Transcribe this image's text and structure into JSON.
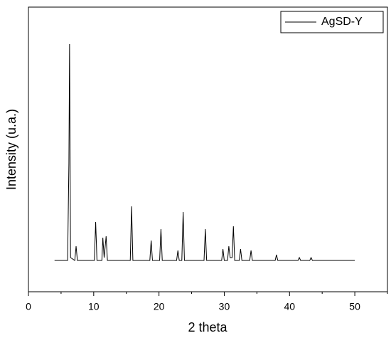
{
  "chart_data": {
    "type": "line",
    "x_label": "2 theta",
    "y_label": "Intensity (u.a.)",
    "xlim": [
      0,
      55
    ],
    "ylim": [
      0,
      100
    ],
    "xticks": [
      0,
      10,
      20,
      30,
      40,
      50
    ],
    "xminorticks": [
      5,
      15,
      25,
      35,
      45,
      55
    ],
    "legend": "top-right",
    "series": [
      {
        "name": "AgSD-Y",
        "color": "#000000",
        "x": [
          4,
          6.0,
          6.2,
          6.3,
          6.45,
          7.1,
          7.3,
          7.5,
          10.1,
          10.3,
          10.5,
          11.25,
          11.4,
          11.6,
          11.9,
          12.1,
          15.6,
          15.8,
          16.0,
          18.6,
          18.8,
          19.0,
          20.1,
          20.3,
          20.5,
          22.7,
          22.9,
          23.1,
          23.5,
          23.7,
          23.9,
          26.9,
          27.1,
          27.3,
          29.6,
          29.8,
          30.0,
          30.5,
          30.7,
          30.9,
          31.2,
          31.4,
          31.6,
          32.3,
          32.5,
          32.7,
          33.9,
          34.1,
          34.3,
          37.8,
          38.0,
          38.2,
          41.3,
          41.5,
          41.7,
          43.1,
          43.3,
          43.5,
          50
        ],
        "values": [
          11,
          11,
          45,
          87,
          12,
          11,
          16,
          11,
          11,
          24.5,
          11,
          11,
          19,
          12,
          19.5,
          11,
          11,
          30,
          11,
          11,
          18,
          11,
          11,
          22,
          11,
          11,
          14.5,
          11,
          11,
          28,
          11,
          11,
          22,
          11,
          11,
          15,
          11,
          11,
          16,
          12,
          12,
          23,
          11,
          11,
          15,
          11,
          11,
          14.5,
          11,
          11,
          13,
          11,
          11,
          12,
          11,
          11,
          12,
          11,
          11
        ]
      }
    ]
  }
}
